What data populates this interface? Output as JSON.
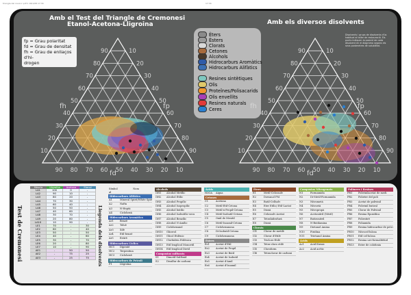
{
  "print_header": {
    "left": "triangle del nova lc pdf 1 18/1/08 17:34",
    "right": "17:34"
  },
  "left_diagram": {
    "title": "Amb el Test del Triangle de Cremonesi",
    "subtitle": "Etanol-Acetona-Lligroina",
    "key_lines": [
      "fp = Grau polaritat",
      "fd = Grau de densitat",
      "fh = Grau de enllaços d'hi-",
      "drogen"
    ],
    "axis_fh": "fh",
    "axis_fp": "fp",
    "axis_fd": "fd",
    "ticks": [
      "10",
      "20",
      "30",
      "40",
      "50",
      "60",
      "70",
      "80",
      "90"
    ]
  },
  "right_diagram": {
    "title": "Amb els diversos disolvents",
    "axis_fh": "fh",
    "axis_fp": "fp",
    "axis_fd": "fd",
    "ticks": [
      "10",
      "20",
      "30",
      "40",
      "50",
      "60",
      "70",
      "80",
      "90"
    ],
    "info_text": "Disolvents i grups de disolvents d'ús habitual al taller de restauració. Els punts indiquen la posició de cada disolvent en el diagrama segons els seus paràmetres de solubilitat."
  },
  "legend": {
    "groups": [
      {
        "label": "Èters",
        "color": "#8a8a8a"
      },
      {
        "label": "Èsters",
        "color": "#9a9a9a"
      },
      {
        "label": "Clorats",
        "color": "#d9d9d9"
      },
      {
        "label": "Cetones",
        "color": "#a76a3c"
      },
      {
        "label": "Alcohols",
        "color": "#4a3a2a"
      },
      {
        "label": "Hidrocarburs Aromàtics",
        "color": "#2f5ba8"
      },
      {
        "label": "Hidrocarburs Alifàtics",
        "color": "#3b6fb3"
      }
    ],
    "materials": [
      {
        "label": "Resines sintètiques",
        "color": "#7fc7bf"
      },
      {
        "label": "Olis",
        "color": "#e0c96a"
      },
      {
        "label": "Proteïnes/Polisacarids",
        "color": "#f0962e"
      },
      {
        "label": "Olis envellits",
        "color": "#a83fb6"
      },
      {
        "label": "Resines naturals",
        "color": "#e23a3a"
      },
      {
        "label": "Ceres",
        "color": "#2a7fd0"
      }
    ]
  },
  "test_table": {
    "side_title": "Test de Cremonesi",
    "headers": [
      "Mescla",
      "Lligroïna",
      "Acetona",
      "Etanol"
    ],
    "rows": [
      [
        "LA1",
        "100",
        "0",
        "-"
      ],
      [
        "LA2",
        "90",
        "10",
        "-"
      ],
      [
        "LA3",
        "80",
        "20",
        "-"
      ],
      [
        "LA4",
        "70",
        "30",
        "-"
      ],
      [
        "LA5",
        "60",
        "40",
        "-"
      ],
      [
        "LA6",
        "50",
        "50",
        "-"
      ],
      [
        "LA7",
        "40",
        "60",
        "-"
      ],
      [
        "LA8",
        "30",
        "70",
        "-"
      ],
      [
        "LA9",
        "20",
        "80",
        "-"
      ],
      [
        "LA10",
        "10",
        "90",
        "-"
      ],
      [
        "LE1",
        "70",
        "-",
        "30"
      ],
      [
        "LE2",
        "60",
        "-",
        "40"
      ],
      [
        "LE3",
        "50",
        "-",
        "50"
      ],
      [
        "LE4",
        "40",
        "-",
        "60"
      ],
      [
        "LE5",
        "30",
        "-",
        "70"
      ],
      [
        "LE6",
        "20",
        "-",
        "80"
      ],
      [
        "LE7",
        "10",
        "-",
        "90"
      ],
      [
        "AE1",
        "-",
        "50",
        "50"
      ],
      [
        "AE2",
        "-",
        "75",
        "25"
      ],
      [
        "AE3",
        "-",
        "25",
        "75"
      ]
    ]
  },
  "solvent_list": {
    "side_title": "Llegenda dels disolvents",
    "head_left": "Símbol al diagrama",
    "head_right": "Nom",
    "sections": [
      {
        "title": "Hidrocarburs Alifàtics",
        "color": "#3b6fb3",
        "items": [
          [
            "A1",
            "Mineral Spirit/White Spirit"
          ],
          [
            "A2",
            "Nafta"
          ],
          [
            "A3",
            "N-Heptà"
          ],
          [
            "A4",
            "Ciclohexà"
          ]
        ]
      },
      {
        "title": "Hidrocarburs Aromàtics",
        "color": "#2f5ba8",
        "items": [
          [
            "Ar1",
            "Benzè"
          ],
          [
            "Ar2",
            "Toluè"
          ],
          [
            "Ar3",
            "Xilè"
          ],
          [
            "Ar4",
            "Etil-benzè"
          ],
          [
            "Ar5",
            "Estirè"
          ]
        ]
      },
      {
        "title": "Hidrocarburs Cíclics",
        "color": "#5a5aa0",
        "items": [
          [
            "HC1",
            "Dipentè"
          ],
          [
            "HC2",
            "Terpentina"
          ],
          [
            "HC3",
            "Ciclohexè"
          ]
        ]
      },
      {
        "title": "Hidrocarburs de Petroli",
        "color": "#3d7a8c",
        "items": [
          [
            "P1",
            "Lligroïna"
          ]
        ]
      }
    ]
  },
  "alcohols": {
    "title": "Alcohols",
    "items": [
      [
        "OH1",
        "Alcohol Metílic"
      ],
      [
        "OH2",
        "Alcohol Etílic"
      ],
      [
        "OH3",
        "Alcohol Propílic"
      ],
      [
        "OH4",
        "Alcohol Isopropílic"
      ],
      [
        "OH5",
        "Alcohol butílic"
      ],
      [
        "OH6",
        "Alcohol Isobutílic-secu"
      ],
      [
        "OH7",
        "Alcohol Benzílic"
      ],
      [
        "OH8",
        "Alcohol N-Amílic"
      ],
      [
        "OH9",
        "Ciclohexanol"
      ],
      [
        "OH10",
        "Glicerol"
      ],
      [
        "OH11",
        "Glicol Etilènic"
      ],
      [
        "OH12",
        "Clorhidrin Etilènica"
      ],
      [
        "OH13",
        "Etil·lenglicol Monoetil"
      ],
      [
        "OH14",
        "Etil·lenglicol Dietil"
      ]
    ],
    "sub_title": "Compostos sulfurats",
    "sub_items": [
      [
        "S1",
        "Dimetil-Sulfòxid"
      ],
      [
        "S2",
        "Disulfur de carboni"
      ]
    ]
  },
  "acids": {
    "title": "Àcids",
    "items": [
      [
        "H3OA",
        "Aigua"
      ]
    ],
    "cetones_title": "Cetones",
    "cetones": [
      [
        "C1",
        "Acetona"
      ],
      [
        "C2",
        "Metil-Etil-Cetona"
      ],
      [
        "C3",
        "Metil-n-Propil-Cetona"
      ],
      [
        "C4",
        "Metil-Isobutil-Cetona"
      ],
      [
        "C5",
        "Òxid de Mesitil"
      ],
      [
        "C6",
        "Metil-Isoamil-Cetona"
      ],
      [
        "C7",
        "Ciclohexanona"
      ],
      [
        "C8",
        "Di-Isobutil-Cetona"
      ],
      [
        "C9",
        "Ciclohexanona"
      ]
    ],
    "esters_title": "Èsters",
    "esters": [
      [
        "Es1",
        "Acetat d'Etil"
      ],
      [
        "Es2",
        "Acetat de Propil"
      ],
      [
        "Es3",
        "Acetat de Butil"
      ],
      [
        "Es4",
        "Acetat de Isobutil"
      ],
      [
        "Es5",
        "Acetat d'Amil"
      ],
      [
        "Es6",
        "Acetat d'Isoamil"
      ]
    ]
  },
  "ethers": {
    "title": "Èters",
    "items": [
      [
        "E1",
        "Metil-Celossolv"
      ],
      [
        "E2",
        "Dowanol PM"
      ],
      [
        "E3",
        "Butil-Cellsolv"
      ],
      [
        "E4",
        "Èter Etílic/ Etil-Lactat"
      ],
      [
        "E5",
        "Dioxà"
      ],
      [
        "E6",
        "Celossolv Acetat"
      ],
      [
        "E7",
        "Tetrahidrofurà"
      ],
      [
        "E8",
        "Dioxà"
      ]
    ],
    "cl_title": "Clorats",
    "cl_items": [
      [
        "Cl1",
        "Clorur de metilè"
      ],
      [
        "Cl2",
        "Clorur d'Etilè"
      ],
      [
        "Cl3",
        "Tricloro-Etilè"
      ],
      [
        "Cl4",
        "Tetra-cloro etilè"
      ],
      [
        "Cl5",
        "Cloroform"
      ],
      [
        "Cl6",
        "Tetraclorur de carboni"
      ]
    ]
  },
  "nitrogen": {
    "title": "Compostos Nitrogenats",
    "items": [
      [
        "N1",
        "Formamida"
      ],
      [
        "N2",
        "Di-Metil-Formamida"
      ],
      [
        "N3",
        "Nitrometà"
      ],
      [
        "N4",
        "Nitroetà"
      ],
      [
        "N5",
        "Nitropropà"
      ],
      [
        "N6",
        "Acetonitril (Nitril)"
      ],
      [
        "N7",
        "Butironitril"
      ],
      [
        "N8",
        "N-Butilamina"
      ],
      [
        "N9",
        "Dietanol Amina"
      ],
      [
        "N10",
        "Piridina"
      ],
      [
        "N11",
        "Trietanol Amina"
      ]
    ],
    "acid_title": "Àcids",
    "acid_items": [
      [
        "Ac1",
        "Àcid fòrmic"
      ],
      [
        "Ac2",
        "Àcid acètic"
      ]
    ]
  },
  "polymers": {
    "title": "Polímers i Resines",
    "items": [
      [
        "PR1",
        "Polivinilacetat de medi"
      ],
      [
        "PR2",
        "Polieter del poli"
      ],
      [
        "PR3",
        "Acetat de polivinil"
      ],
      [
        "PR4",
        "Polivinil butiral"
      ],
      [
        "PR5",
        "Clorur de Polivinil"
      ],
      [
        "PR6",
        "Resina Epoxídica"
      ],
      [
        "PR7",
        "Poliestirè"
      ],
      [
        "PR8",
        "Poliamida"
      ],
      [
        "PR9",
        "Resina hidrocarbur de petroli"
      ],
      [
        "PR10",
        "Nitrocel·lulosa"
      ],
      [
        "PR11",
        "Etil-cel·lulosa"
      ],
      [
        "PR12",
        "Resina ure-formaldehid"
      ],
      [
        "PR13",
        "Ester de colofonia"
      ]
    ]
  }
}
